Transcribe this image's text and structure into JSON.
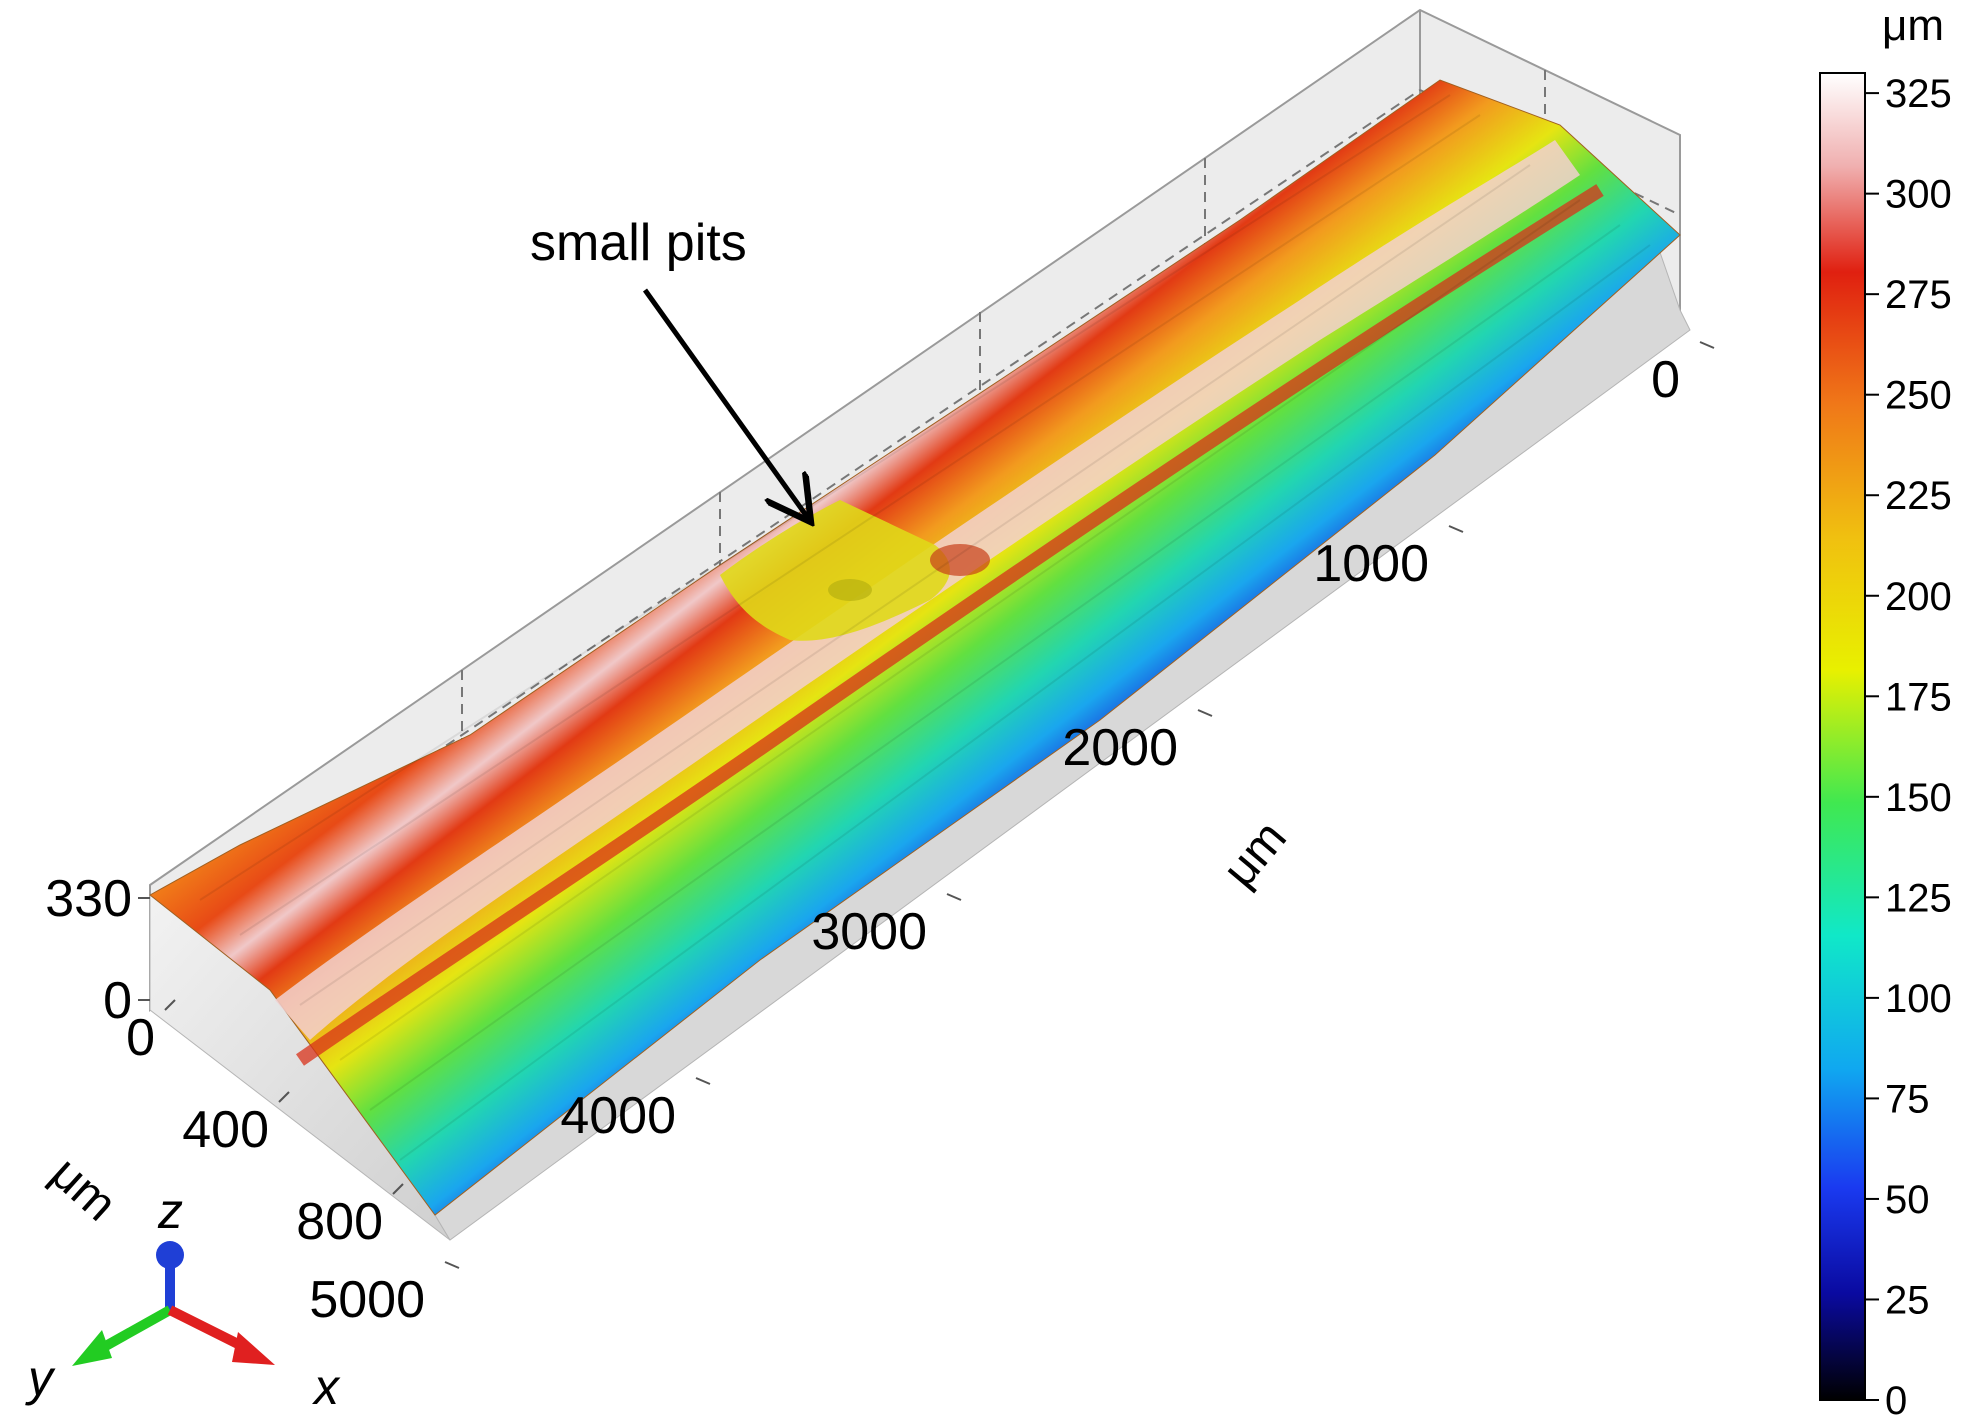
{
  "annotation": {
    "text": "small pits"
  },
  "chart_data": {
    "type": "surface",
    "title": "",
    "x_axis": {
      "label": "μm",
      "ticks": [
        0,
        1000,
        2000,
        3000,
        4000,
        5000
      ],
      "range": [
        0,
        5000
      ]
    },
    "y_axis": {
      "label": "μm",
      "ticks": [
        0,
        400,
        800
      ],
      "range": [
        0,
        1000
      ]
    },
    "z_axis": {
      "label": "",
      "ticks": [
        0,
        330
      ],
      "range": [
        0,
        330
      ]
    },
    "colorbar": {
      "unit": "μm",
      "ticks": [
        0,
        25,
        50,
        75,
        100,
        125,
        150,
        175,
        200,
        225,
        250,
        275,
        300,
        325
      ],
      "range": [
        0,
        330
      ]
    },
    "profile": {
      "y": [
        0,
        100,
        200,
        300,
        400,
        500,
        600,
        700,
        800,
        900,
        1000
      ],
      "z": [
        200,
        225,
        255,
        300,
        265,
        235,
        200,
        170,
        140,
        100,
        50
      ]
    },
    "triad": {
      "labels": [
        "z",
        "y",
        "x"
      ],
      "colors": [
        "#1f3fd6",
        "#22cc22",
        "#e02020"
      ]
    }
  }
}
